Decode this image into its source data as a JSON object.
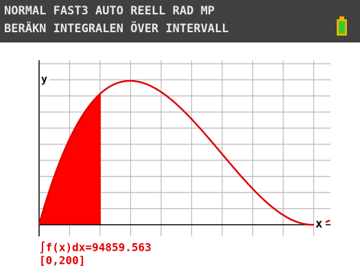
{
  "status_bar": {
    "modes": "NORMAL FAST3 AUTO REELL RAD MP",
    "message": "BERÄKN INTEGRALEN ÖVER INTERVALL"
  },
  "graph": {
    "y_label": "y",
    "x_label": "x",
    "result": "∫f(x)dx=94859.563",
    "interval": "[0,200]"
  }
}
